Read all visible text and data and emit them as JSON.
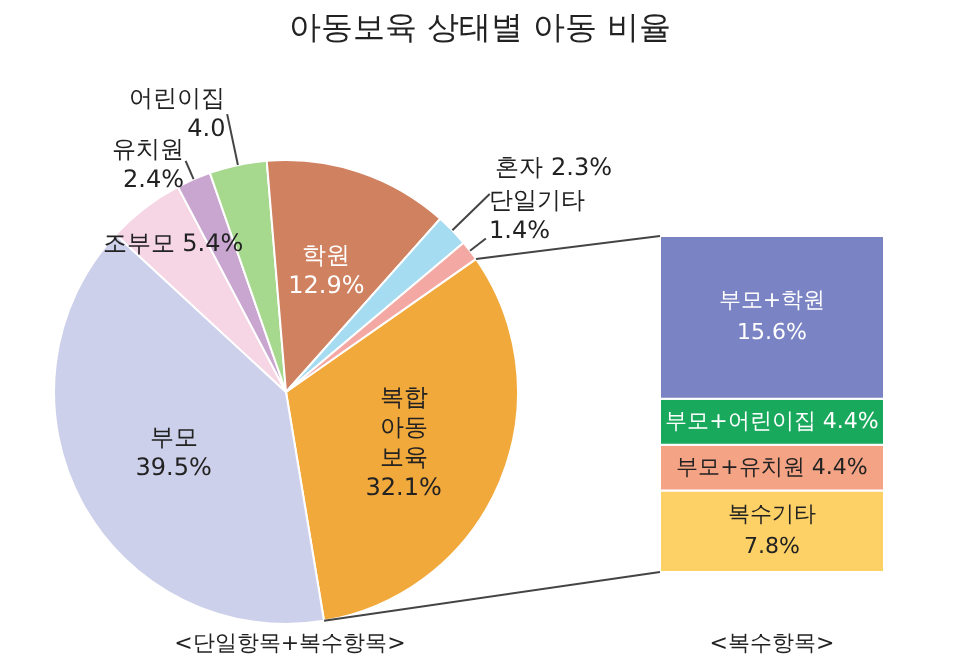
{
  "chart_data": [
    {
      "type": "pie",
      "title": "아동보육 상태별 아동 비율",
      "categories": [
        "복합 아동 보육",
        "부모",
        "조부모",
        "유치원",
        "어린이집",
        "학원",
        "혼자",
        "단일기타"
      ],
      "values": [
        32.1,
        39.5,
        5.4,
        2.4,
        4.0,
        12.9,
        2.3,
        1.4
      ],
      "colors": [
        "#f2a93b",
        "#cdd0ea",
        "#f6d5e5",
        "#c9a6cf",
        "#a6d88e",
        "#cf8160",
        "#a6dcf2",
        "#f3a8a4"
      ],
      "value_labels": [
        "32.1%",
        "39.5%",
        "5.4%",
        "2.4%",
        "4.0",
        "12.9%",
        "2.3%",
        "1.4%"
      ],
      "annotations": [
        "<단일항목+복수항목>"
      ],
      "legend": false
    },
    {
      "type": "bar",
      "stacked": true,
      "categories": [
        null
      ],
      "series": [
        {
          "name": "복수기타",
          "color": "#fdd166",
          "values": [
            7.8
          ],
          "value_labels": [
            "7.8%"
          ]
        },
        {
          "name": "부모+유치원",
          "color": "#f4a384",
          "values": [
            4.4
          ],
          "value_labels": [
            "4.4%"
          ]
        },
        {
          "name": "부모+어린이집",
          "color": "#19a95c",
          "values": [
            4.4
          ],
          "value_labels": [
            "4.4%"
          ]
        },
        {
          "name": "부모+학원",
          "color": "#7a83c3",
          "values": [
            15.6
          ],
          "value_labels": [
            "15.6%"
          ]
        }
      ],
      "annotations": [
        "<복수항목>"
      ],
      "legend": false
    }
  ]
}
